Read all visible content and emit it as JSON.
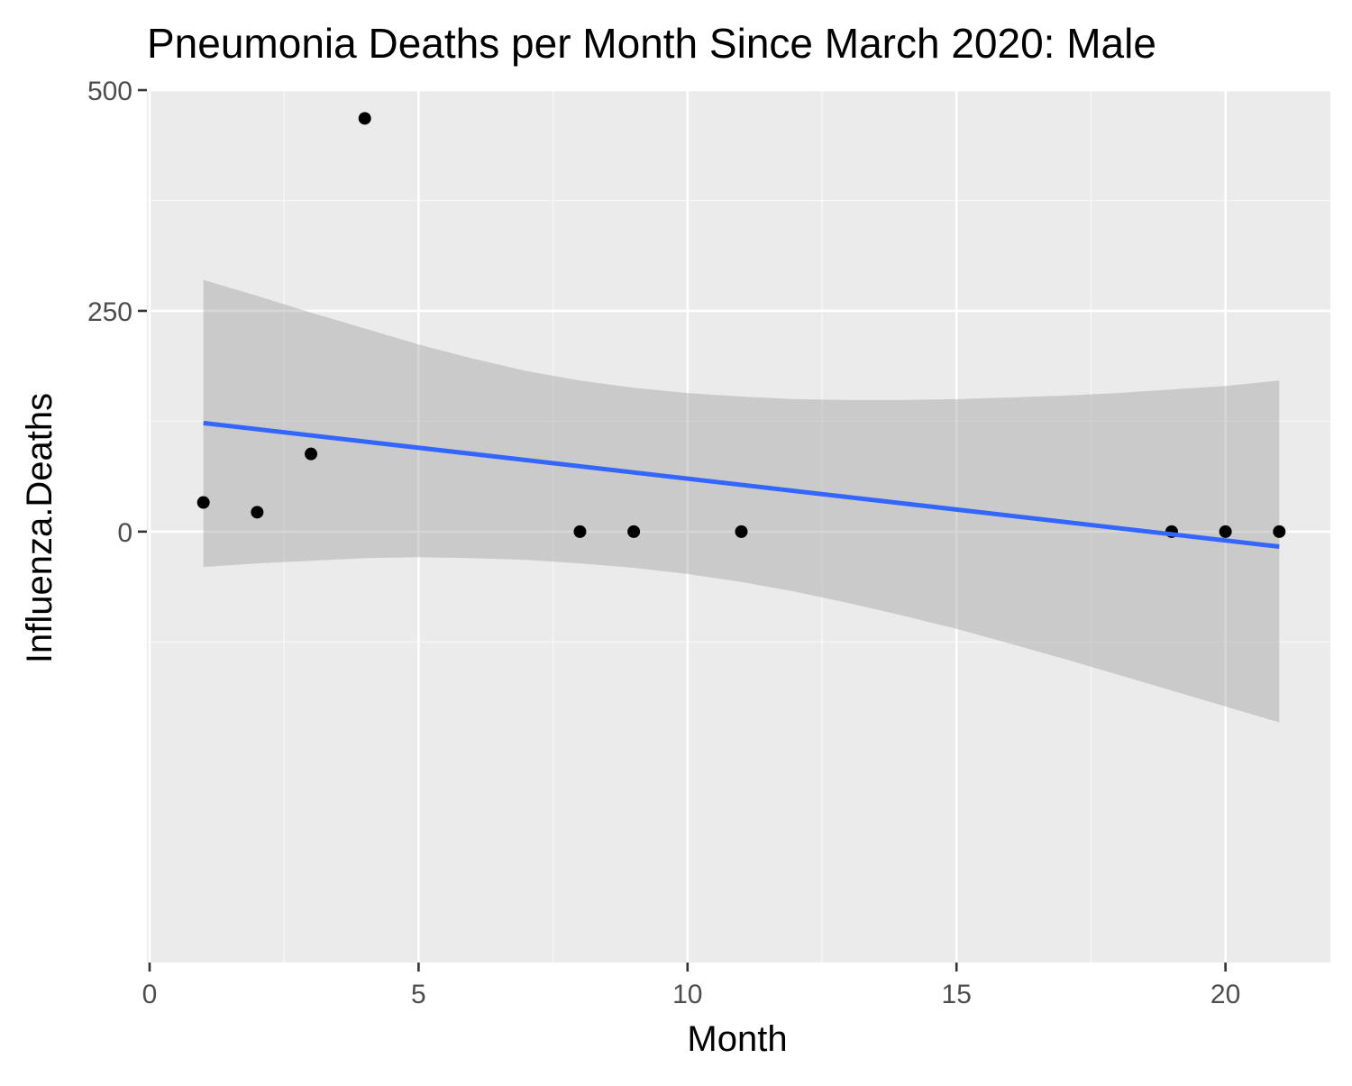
{
  "chart_data": {
    "type": "scatter",
    "title": "Pneumonia Deaths per Month Since March 2020: Male",
    "xlabel": "Month",
    "ylabel": "Influenza.Deaths",
    "xlim": [
      -0.05,
      21.95
    ],
    "ylim": [
      -488,
      500
    ],
    "x_ticks": [
      0,
      5,
      10,
      15,
      20
    ],
    "x_tick_labels": [
      "0",
      "5",
      "10",
      "15",
      "20"
    ],
    "y_ticks": [
      0,
      250,
      500
    ],
    "y_tick_labels": [
      "0",
      "250",
      "500"
    ],
    "x_minor_ticks": [
      2.5,
      7.5,
      12.5,
      17.5
    ],
    "y_minor_ticks": [
      -125,
      125,
      375
    ],
    "grid": true,
    "legend": "none",
    "points": [
      {
        "x": 1,
        "y": 33
      },
      {
        "x": 2,
        "y": 22
      },
      {
        "x": 3,
        "y": 88
      },
      {
        "x": 4,
        "y": 468
      },
      {
        "x": 8,
        "y": 0
      },
      {
        "x": 9,
        "y": 0
      },
      {
        "x": 11,
        "y": 0
      },
      {
        "x": 19,
        "y": 0
      },
      {
        "x": 20,
        "y": 0
      },
      {
        "x": 21,
        "y": 0
      }
    ],
    "trend_line": {
      "method": "linear",
      "x": [
        1,
        21
      ],
      "y": [
        123,
        -17
      ]
    },
    "confidence_band": {
      "x": [
        1,
        2,
        3,
        4,
        5,
        6,
        7,
        8,
        9,
        10,
        11,
        12,
        13,
        14,
        15,
        16,
        17,
        18,
        19,
        20,
        21
      ],
      "upper": [
        285,
        267,
        248,
        230,
        212,
        196,
        182,
        171,
        163,
        157,
        153,
        150,
        149,
        149,
        150,
        152,
        154,
        157,
        161,
        165,
        171
      ],
      "lower": [
        -40,
        -36,
        -33,
        -30,
        -29,
        -30,
        -32,
        -36,
        -41,
        -48,
        -57,
        -68,
        -81,
        -95,
        -110,
        -127,
        -144,
        -162,
        -180,
        -198,
        -216
      ]
    },
    "colors": {
      "panel_background": "#ebebeb",
      "grid_major": "#ffffff",
      "grid_minor": "#f7f7f7",
      "points": "#000000",
      "trend_line": "#3366ff",
      "confidence_band": "#999999",
      "axis_ticks": "#333333",
      "tick_labels": "#4d4d4d",
      "title": "#000000"
    }
  }
}
